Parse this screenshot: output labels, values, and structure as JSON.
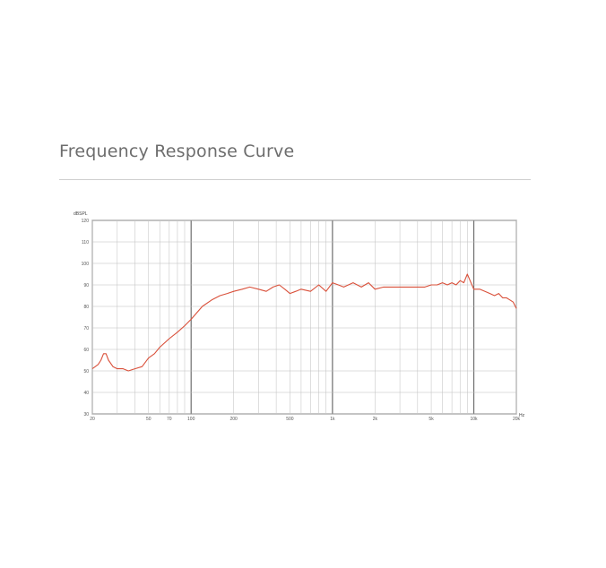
{
  "page": {
    "heading": "Frequency Response Curve"
  },
  "chart_data": {
    "type": "line",
    "title": "Frequency Response Curve",
    "ylabel": "dBSPL",
    "xlabel": "",
    "x_unit_label": "Hz",
    "x_scale": "log",
    "xlim": [
      20,
      20000
    ],
    "ylim": [
      30,
      120
    ],
    "grid": true,
    "y_ticks": [
      "30",
      "40",
      "50",
      "60",
      "70",
      "80",
      "90",
      "100",
      "110",
      "120"
    ],
    "x_ticks": [
      {
        "value": 20,
        "label": "20"
      },
      {
        "value": 50,
        "label": "50"
      },
      {
        "value": 70,
        "label": "70"
      },
      {
        "value": 100,
        "label": "100"
      },
      {
        "value": 200,
        "label": "200"
      },
      {
        "value": 500,
        "label": "500"
      },
      {
        "value": 1000,
        "label": "1k"
      },
      {
        "value": 2000,
        "label": "2k"
      },
      {
        "value": 5000,
        "label": "5k"
      },
      {
        "value": 10000,
        "label": "10k"
      },
      {
        "value": 20000,
        "label": "20k"
      }
    ],
    "series": [
      {
        "color": "#d9503a",
        "x": [
          20,
          21,
          22,
          23,
          24,
          25,
          26,
          28,
          30,
          33,
          36,
          40,
          45,
          50,
          55,
          60,
          70,
          80,
          90,
          100,
          120,
          140,
          160,
          180,
          200,
          230,
          260,
          300,
          340,
          380,
          420,
          460,
          500,
          550,
          600,
          700,
          800,
          900,
          1000,
          1100,
          1200,
          1400,
          1600,
          1800,
          2000,
          2300,
          2600,
          3000,
          3500,
          4000,
          4500,
          5000,
          5500,
          6000,
          6500,
          7000,
          7500,
          8000,
          8500,
          9000,
          10000,
          11000,
          12000,
          13000,
          14000,
          15000,
          16000,
          17000,
          18000,
          19000,
          20000
        ],
        "y": [
          51,
          52,
          53,
          55,
          58,
          58,
          55,
          52,
          51,
          51,
          50,
          51,
          52,
          56,
          58,
          61,
          65,
          68,
          71,
          74,
          80,
          83,
          85,
          86,
          87,
          88,
          89,
          88,
          87,
          89,
          90,
          88,
          86,
          87,
          88,
          87,
          90,
          87,
          91,
          90,
          89,
          91,
          89,
          91,
          88,
          89,
          89,
          89,
          89,
          89,
          89,
          90,
          90,
          91,
          90,
          91,
          90,
          92,
          91,
          95,
          88,
          88,
          87,
          86,
          85,
          86,
          84,
          84,
          83,
          82,
          79
        ]
      }
    ]
  }
}
